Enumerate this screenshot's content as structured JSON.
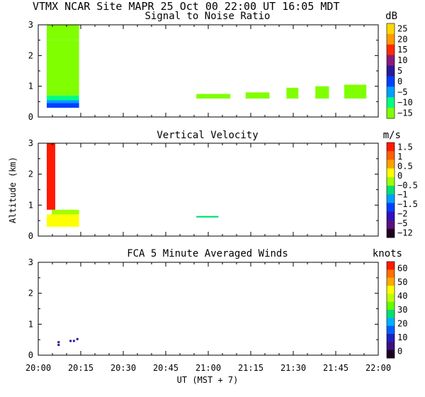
{
  "header": {
    "title": "VTMX  NCAR Site  MAPR 25 Oct 00  22:00 UT  16:05  MDT"
  },
  "x_axis": {
    "ticks": [
      "20:00",
      "20:15",
      "20:30",
      "20:45",
      "21:00",
      "21:15",
      "21:30",
      "21:45",
      "22:00"
    ],
    "tick_hours": [
      20.0,
      20.25,
      20.5,
      20.75,
      21.0,
      21.25,
      21.5,
      21.75,
      22.0
    ],
    "label": "UT  (MST + 7)",
    "range": [
      20.0,
      22.0
    ]
  },
  "y_axis": {
    "label": "Altitude (km)",
    "range": [
      0,
      3
    ],
    "ticks": [
      "0",
      "1",
      "2",
      "3"
    ]
  },
  "chart_data": [
    {
      "type": "heatmap",
      "title": "Signal to Noise Ratio",
      "units": "dB",
      "xlabel": "",
      "ylabel": "",
      "xlim": [
        20.0,
        22.0
      ],
      "ylim": [
        0,
        3
      ],
      "colorbar_labels": [
        "25",
        "20",
        "15",
        "10",
        "5",
        "0",
        "−5",
        "−10",
        "−15"
      ],
      "colorbar_colors": [
        "#ffd800",
        "#ff9a00",
        "#ff2a00",
        "#8a1a7a",
        "#2a1a9a",
        "#0040ff",
        "#00a0ff",
        "#00ff80",
        "#80ff00"
      ],
      "blocks": [
        {
          "x": [
            20.05,
            20.24
          ],
          "y": [
            2.5,
            3.0
          ],
          "color": "#80ff00"
        },
        {
          "x": [
            20.05,
            20.24
          ],
          "y": [
            0.7,
            2.5
          ],
          "color": "#80ff00"
        },
        {
          "x": [
            20.05,
            20.24
          ],
          "y": [
            0.55,
            0.7
          ],
          "color": "#00ff80"
        },
        {
          "x": [
            20.05,
            20.24
          ],
          "y": [
            0.45,
            0.55
          ],
          "color": "#00a0ff"
        },
        {
          "x": [
            20.05,
            20.24
          ],
          "y": [
            0.3,
            0.45
          ],
          "color": "#0040ff"
        },
        {
          "x": [
            20.93,
            21.13
          ],
          "y": [
            0.6,
            0.75
          ],
          "color": "#80ff00"
        },
        {
          "x": [
            21.22,
            21.36
          ],
          "y": [
            0.6,
            0.8
          ],
          "color": "#80ff00"
        },
        {
          "x": [
            21.46,
            21.53
          ],
          "y": [
            0.6,
            0.95
          ],
          "color": "#80ff00"
        },
        {
          "x": [
            21.63,
            21.71
          ],
          "y": [
            0.6,
            1.0
          ],
          "color": "#80ff00"
        },
        {
          "x": [
            21.8,
            21.93
          ],
          "y": [
            0.6,
            1.05
          ],
          "color": "#80ff00"
        }
      ]
    },
    {
      "type": "heatmap",
      "title": "Vertical Velocity",
      "units": "m/s",
      "xlabel": "",
      "ylabel": "Altitude (km)",
      "xlim": [
        20.0,
        22.0
      ],
      "ylim": [
        0,
        3
      ],
      "colorbar_labels": [
        "1.5",
        "1",
        "0.5",
        "0",
        "−0.5",
        "−1",
        "−1.5",
        "−2",
        "−5",
        "−12"
      ],
      "colorbar_colors": [
        "#ff1a00",
        "#ff6000",
        "#ffa000",
        "#ffff00",
        "#a0ff00",
        "#00e070",
        "#00a0ff",
        "#0040ff",
        "#3010c0",
        "#5a1080",
        "#200020"
      ],
      "blocks": [
        {
          "x": [
            20.05,
            20.1
          ],
          "y": [
            0.85,
            3.0
          ],
          "color": "#ff1a00"
        },
        {
          "x": [
            20.05,
            20.24
          ],
          "y": [
            0.3,
            0.7
          ],
          "color": "#ffff00"
        },
        {
          "x": [
            20.08,
            20.24
          ],
          "y": [
            0.7,
            0.85
          ],
          "color": "#a0ff00"
        },
        {
          "x": [
            20.93,
            21.06
          ],
          "y": [
            0.6,
            0.65
          ],
          "color": "#00e070"
        }
      ]
    },
    {
      "type": "scatter",
      "title": "FCA 5 Minute Averaged Winds",
      "units": "knots",
      "xlabel": "UT  (MST + 7)",
      "ylabel": "",
      "xlim": [
        20.0,
        22.0
      ],
      "ylim": [
        0,
        3
      ],
      "colorbar_labels": [
        "60",
        "50",
        "40",
        "30",
        "20",
        "10",
        "0"
      ],
      "colorbar_colors": [
        "#ff1a00",
        "#ff7000",
        "#ffa800",
        "#ffff00",
        "#c0ff00",
        "#60ff00",
        "#00e070",
        "#00b0ff",
        "#0060ff",
        "#2020c0",
        "#3a1080",
        "#200020"
      ],
      "points": [
        {
          "x": 20.12,
          "y": 0.42,
          "color": "#3a1080"
        },
        {
          "x": 20.12,
          "y": 0.33,
          "color": "#3a1080"
        },
        {
          "x": 20.19,
          "y": 0.46,
          "color": "#3a1080"
        },
        {
          "x": 20.21,
          "y": 0.46,
          "color": "#2020c0"
        },
        {
          "x": 20.23,
          "y": 0.52,
          "color": "#3a1080"
        }
      ]
    }
  ]
}
